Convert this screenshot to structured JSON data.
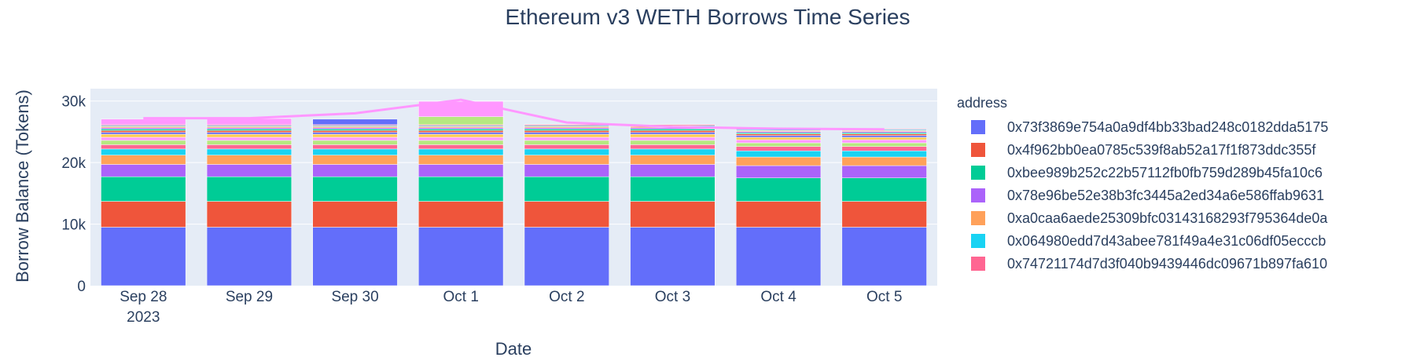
{
  "chart_data": {
    "type": "bar",
    "stacked": true,
    "title": "Ethereum v3 WETH Borrows Time Series",
    "xlabel": "Date",
    "ylabel": "Borrow Balance (Tokens)",
    "ylim": [
      0,
      32000
    ],
    "yticks": [
      0,
      10000,
      20000,
      30000
    ],
    "ytick_labels": [
      "0",
      "10k",
      "20k",
      "30k"
    ],
    "grid": true,
    "categories": [
      "Sep 28",
      "Sep 29",
      "Sep 30",
      "Oct 1",
      "Oct 2",
      "Oct 3",
      "Oct 4",
      "Oct 5"
    ],
    "category_year_label": "2023",
    "legend": {
      "title": "address",
      "placement": "right",
      "entries": [
        {
          "name": "0x73f3869e754a0a9df4bb33bad248c0182dda5175",
          "color": "#636efa"
        },
        {
          "name": "0x4f962bb0ea0785c539f8ab52a17f1f873ddc355f",
          "color": "#EF553B"
        },
        {
          "name": "0xbee989b252c22b57112fb0fb759d289b45fa10c6",
          "color": "#00cc96"
        },
        {
          "name": "0x78e96be52e38b3fc3445a2ed34a6e586ffab9631",
          "color": "#ab63fa"
        },
        {
          "name": "0xa0caa6aede25309bfc03143168293f795364de0a",
          "color": "#FFA15A"
        },
        {
          "name": "0x064980edd7d43abee781f49a4e31c06df05ecccb",
          "color": "#19d3f3"
        },
        {
          "name": "0x74721174d7d3f040b9439446dc09671b897fa610",
          "color": "#FF6692"
        }
      ]
    },
    "series": [
      {
        "name": "0x73f3869e754a0a9df4bb33bad248c0182dda5175",
        "color": "#636efa",
        "values": [
          9500,
          9500,
          9500,
          9500,
          9500,
          9500,
          9500,
          9500
        ]
      },
      {
        "name": "0x4f962bb0ea0785c539f8ab52a17f1f873ddc355f",
        "color": "#EF553B",
        "values": [
          4200,
          4200,
          4200,
          4200,
          4200,
          4200,
          4200,
          4200
        ]
      },
      {
        "name": "0xbee989b252c22b57112fb0fb759d289b45fa10c6",
        "color": "#00cc96",
        "values": [
          4000,
          4000,
          4000,
          4000,
          4000,
          4000,
          3800,
          3800
        ]
      },
      {
        "name": "0x78e96be52e38b3fc3445a2ed34a6e586ffab9631",
        "color": "#ab63fa",
        "values": [
          2000,
          2000,
          2000,
          2000,
          2000,
          2000,
          2000,
          2000
        ]
      },
      {
        "name": "0xa0caa6aede25309bfc03143168293f795364de0a",
        "color": "#FFA15A",
        "values": [
          1500,
          1500,
          1500,
          1500,
          1500,
          1500,
          1400,
          1400
        ]
      },
      {
        "name": "0x064980edd7d43abee781f49a4e31c06df05ecccb",
        "color": "#19d3f3",
        "values": [
          1000,
          1000,
          1000,
          1000,
          1000,
          1000,
          1000,
          1000
        ]
      },
      {
        "name": "0x74721174d7d3f040b9439446dc09671b897fa610",
        "color": "#FF6692",
        "values": [
          700,
          700,
          700,
          700,
          700,
          700,
          700,
          700
        ]
      },
      {
        "name": "",
        "color": "#B6E880",
        "values": [
          700,
          700,
          700,
          700,
          700,
          700,
          600,
          600
        ]
      },
      {
        "name": "",
        "color": "#FF97FF",
        "values": [
          500,
          500,
          500,
          500,
          500,
          500,
          500,
          500
        ]
      },
      {
        "name": "",
        "color": "#FECB52",
        "values": [
          500,
          500,
          500,
          500,
          500,
          500,
          400,
          400
        ]
      },
      {
        "name": "",
        "color": "#636efa",
        "values": [
          300,
          300,
          300,
          300,
          300,
          300,
          300,
          300
        ]
      },
      {
        "name": "",
        "color": "#EF553B",
        "values": [
          300,
          300,
          300,
          300,
          300,
          300,
          250,
          250
        ]
      },
      {
        "name": "",
        "color": "#00cc96",
        "values": [
          250,
          250,
          250,
          250,
          250,
          250,
          200,
          200
        ]
      },
      {
        "name": "",
        "color": "#ab63fa",
        "values": [
          200,
          200,
          200,
          200,
          200,
          200,
          200,
          200
        ]
      },
      {
        "name": "",
        "color": "#FFA15A",
        "values": [
          200,
          200,
          200,
          200,
          200,
          200,
          150,
          150
        ]
      },
      {
        "name": "",
        "color": "#19d3f3",
        "values": [
          150,
          150,
          150,
          150,
          150,
          150,
          150,
          150
        ]
      },
      {
        "name": "",
        "color": "#FF6692",
        "values": [
          150,
          150,
          150,
          150,
          150,
          150,
          100,
          100
        ]
      },
      {
        "name": "",
        "color": "#B6E880",
        "values": [
          0,
          0,
          0,
          1300,
          0,
          0,
          0,
          0
        ]
      },
      {
        "name": "",
        "color": "#636efa",
        "values": [
          0,
          0,
          900,
          0,
          0,
          0,
          0,
          0
        ]
      },
      {
        "name": "",
        "color": "#FF97FF",
        "values": [
          900,
          1000,
          0,
          2500,
          0,
          0,
          0,
          0
        ]
      }
    ],
    "line": {
      "color": "#FF97FF",
      "values": [
        27200,
        27200,
        28000,
        30200,
        26500,
        25800,
        25500,
        25400
      ]
    }
  }
}
